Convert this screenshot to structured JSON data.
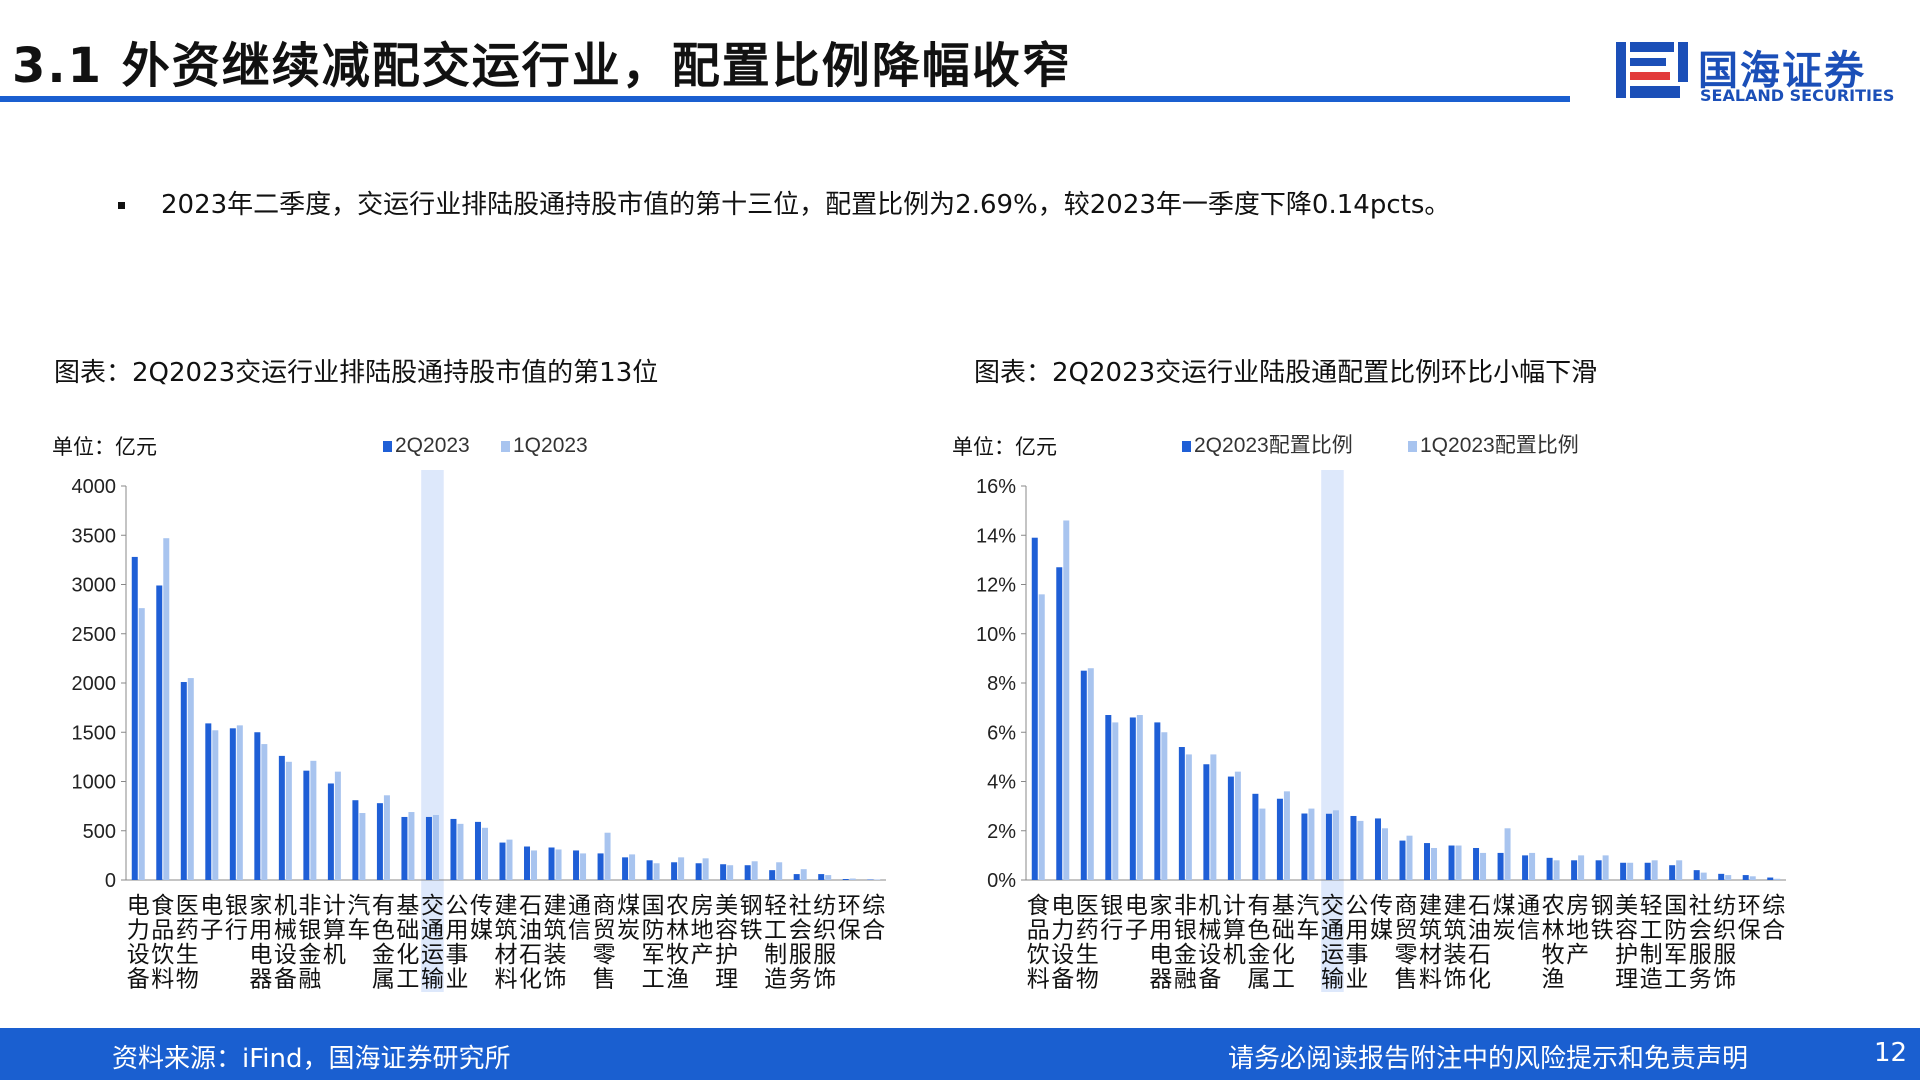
{
  "page": {
    "title": "3.1 外资继续减配交运行业，配置比例降幅收窄",
    "logo_cn": "国海证券",
    "logo_en": "SEALAND SECURITIES",
    "bullet": "2023年二季度，交运行业排陆股通持股市值的第十三位，配置比例为2.69%，较2023年一季度下降0.14pcts。",
    "footer_source": "资料来源：iFind，国海证券研究所",
    "footer_disclaimer": "请务必阅读报告附注中的风险提示和免责声明",
    "page_number": "12",
    "colors": {
      "accent": "#1a5fd0",
      "series_2q": "#1f5fd6",
      "series_1q": "#a8c4ef",
      "highlight": "#dde8fb"
    }
  },
  "chart_data": [
    {
      "type": "bar",
      "title": "图表：2Q2023交运行业排陆股通持股市值的第13位",
      "unit_label": "单位：亿元",
      "ylim": [
        0,
        4000
      ],
      "yticks": [
        "0",
        "500",
        "1000",
        "1500",
        "2000",
        "2500",
        "3000",
        "3500",
        "4000"
      ],
      "highlight_category": "交通运输",
      "categories": [
        "电力设备",
        "食品饮料",
        "医药生物",
        "电子",
        "银行",
        "家用电器",
        "机械设备",
        "非银金融",
        "计算机",
        "汽车",
        "有色金属",
        "基础化工",
        "交通运输",
        "公用事业",
        "传媒",
        "建筑材料",
        "石油石化",
        "建筑装饰",
        "通信",
        "商贸零售",
        "煤炭",
        "国防军工",
        "农林牧渔",
        "房地产",
        "美容护理",
        "钢铁",
        "轻工制造",
        "社会服务",
        "纺织服饰",
        "环保",
        "综合"
      ],
      "series": [
        {
          "name": "2Q2023",
          "values": [
            3280,
            2990,
            2010,
            1590,
            1540,
            1500,
            1260,
            1110,
            980,
            810,
            780,
            640,
            640,
            620,
            590,
            380,
            340,
            330,
            300,
            270,
            230,
            200,
            180,
            170,
            160,
            150,
            100,
            60,
            60,
            10,
            5
          ]
        },
        {
          "name": "1Q2023",
          "values": [
            2760,
            3470,
            2050,
            1520,
            1570,
            1380,
            1200,
            1210,
            1100,
            680,
            860,
            690,
            660,
            570,
            530,
            410,
            300,
            310,
            270,
            480,
            260,
            170,
            230,
            220,
            150,
            190,
            180,
            110,
            50,
            15,
            5
          ]
        }
      ]
    },
    {
      "type": "bar",
      "title": "图表：2Q2023交运行业陆股通配置比例环比小幅下滑",
      "unit_label": "单位：亿元",
      "ylim": [
        0,
        16
      ],
      "yticks": [
        "0%",
        "2%",
        "4%",
        "6%",
        "8%",
        "10%",
        "12%",
        "14%",
        "16%"
      ],
      "highlight_category": "交通运输",
      "categories": [
        "食品饮料",
        "电力设备",
        "医药生物",
        "银行",
        "电子",
        "家用电器",
        "非银金融",
        "机械设备",
        "计算机",
        "有色金属",
        "基础化工",
        "汽车",
        "交通运输",
        "公用事业",
        "传媒",
        "商贸零售",
        "建筑材料",
        "建筑装饰",
        "石油石化",
        "煤炭",
        "通信",
        "农林牧渔",
        "房地产",
        "钢铁",
        "美容护理",
        "轻工制造",
        "国防军工",
        "社会服务",
        "纺织服饰",
        "环保",
        "综合"
      ],
      "series": [
        {
          "name": "2Q2023配置比例",
          "values": [
            13.9,
            12.7,
            8.5,
            6.7,
            6.6,
            6.4,
            5.4,
            4.7,
            4.2,
            3.5,
            3.3,
            2.7,
            2.69,
            2.6,
            2.5,
            1.6,
            1.5,
            1.4,
            1.3,
            1.1,
            1.0,
            0.9,
            0.8,
            0.8,
            0.7,
            0.7,
            0.6,
            0.4,
            0.25,
            0.2,
            0.1
          ]
        },
        {
          "name": "1Q2023配置比例",
          "values": [
            11.6,
            14.6,
            8.6,
            6.4,
            6.7,
            6.0,
            5.1,
            5.1,
            4.4,
            2.9,
            3.6,
            2.9,
            2.83,
            2.4,
            2.1,
            1.8,
            1.3,
            1.4,
            1.1,
            2.1,
            1.1,
            0.8,
            1.0,
            1.0,
            0.7,
            0.8,
            0.8,
            0.3,
            0.2,
            0.15,
            0.05
          ]
        }
      ]
    }
  ]
}
